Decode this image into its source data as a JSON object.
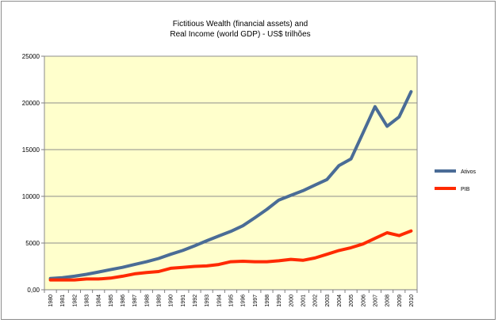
{
  "chart_data": {
    "type": "line",
    "title_lines": [
      "Fictitious Wealth (financial assets) and",
      "Real Income (world GDP) - US$ trilhões"
    ],
    "xlabel": "",
    "ylabel": "",
    "x": [
      "1980",
      "1981",
      "1982",
      "1983",
      "1984",
      "1985",
      "1986",
      "1987",
      "1988",
      "1989",
      "1990",
      "1991",
      "1992",
      "1993",
      "1994",
      "1995",
      "1996",
      "1997",
      "1998",
      "1999",
      "2000",
      "2001",
      "2002",
      "2003",
      "2004",
      "2005",
      "2006",
      "2007",
      "2008",
      "2009",
      "2010"
    ],
    "ylim": [
      0,
      25000
    ],
    "yticks": [
      "0,00",
      "5000",
      "10000",
      "15000",
      "20000",
      "25000"
    ],
    "ytick_values": [
      0,
      5000,
      10000,
      15000,
      20000,
      25000
    ],
    "grid": true,
    "plot_background": "#ffffcc",
    "legend_position": "right",
    "series": [
      {
        "name": "Ativos",
        "color": "#4a6c96",
        "values": [
          1200,
          1300,
          1450,
          1650,
          1900,
          2150,
          2400,
          2700,
          3000,
          3350,
          3800,
          4200,
          4700,
          5250,
          5750,
          6250,
          6850,
          7700,
          8600,
          9600,
          10100,
          10600,
          11200,
          11800,
          13300,
          14000,
          16800,
          19600,
          17500,
          18500,
          21200
        ]
      },
      {
        "name": "PIB",
        "color": "#ff2a00",
        "values": [
          1050,
          1050,
          1050,
          1150,
          1150,
          1250,
          1450,
          1700,
          1850,
          1950,
          2300,
          2400,
          2500,
          2550,
          2700,
          3000,
          3050,
          3000,
          3000,
          3100,
          3250,
          3150,
          3400,
          3800,
          4200,
          4500,
          4900,
          5500,
          6100,
          5800,
          6300
        ]
      }
    ]
  }
}
